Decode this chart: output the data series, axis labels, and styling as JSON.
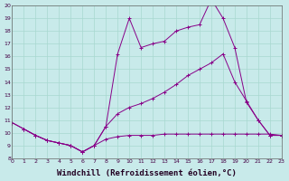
{
  "background_color": "#c8eaea",
  "line_color": "#880088",
  "xlabel": "Windchill (Refroidissement éolien,°C)",
  "xlabel_fontsize": 6.5,
  "xlim": [
    0,
    23
  ],
  "ylim": [
    8,
    20
  ],
  "xticks": [
    0,
    1,
    2,
    3,
    4,
    5,
    6,
    7,
    8,
    9,
    10,
    11,
    12,
    13,
    14,
    15,
    16,
    17,
    18,
    19,
    20,
    21,
    22,
    23
  ],
  "yticks": [
    8,
    9,
    10,
    11,
    12,
    13,
    14,
    15,
    16,
    17,
    18,
    19,
    20
  ],
  "grid_color": "#a8d8d0",
  "line1_x": [
    0,
    1,
    2,
    3,
    4,
    5,
    6,
    7,
    8,
    9,
    10,
    11,
    12,
    13,
    14,
    15,
    16,
    17,
    18,
    19,
    20,
    21,
    22,
    23
  ],
  "line1_y": [
    10.8,
    10.3,
    9.8,
    9.4,
    9.2,
    9.0,
    8.5,
    9.0,
    10.5,
    16.2,
    19.0,
    16.7,
    17.0,
    17.2,
    18.0,
    18.3,
    18.5,
    20.5,
    19.0,
    16.7,
    12.4,
    11.0,
    9.8,
    9.8
  ],
  "line2_x": [
    0,
    1,
    2,
    3,
    4,
    5,
    6,
    7,
    8,
    9,
    10,
    11,
    12,
    13,
    14,
    15,
    16,
    17,
    18,
    19,
    20,
    21,
    22,
    23
  ],
  "line2_y": [
    10.8,
    10.3,
    9.8,
    9.4,
    9.2,
    9.0,
    8.5,
    9.0,
    10.5,
    11.5,
    12.0,
    12.3,
    12.7,
    13.2,
    13.8,
    14.5,
    15.0,
    15.5,
    16.2,
    14.0,
    12.5,
    11.0,
    9.8,
    9.8
  ],
  "line3_x": [
    1,
    2,
    3,
    4,
    5,
    6,
    7,
    8,
    9,
    10,
    11,
    12,
    13,
    14,
    15,
    16,
    17,
    18,
    19,
    20,
    21,
    22,
    23
  ],
  "line3_y": [
    10.3,
    9.8,
    9.4,
    9.2,
    9.0,
    8.5,
    9.0,
    9.5,
    9.7,
    9.8,
    9.8,
    9.8,
    9.9,
    9.9,
    9.9,
    9.9,
    9.9,
    9.9,
    9.9,
    9.9,
    9.9,
    9.9,
    9.8
  ]
}
